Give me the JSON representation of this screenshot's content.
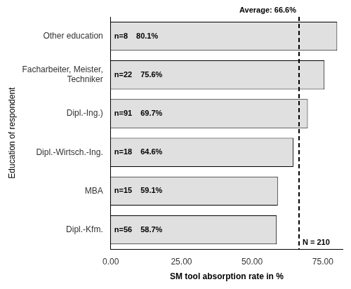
{
  "chart_data": {
    "type": "bar",
    "orientation": "horizontal",
    "categories": [
      "Dipl.-Kfm.",
      "MBA",
      "Dipl.-Wirtsch.-Ing.",
      "Dipl.-Ing.)",
      "Facharbeiter, Meister,\nTechniker",
      "Other education"
    ],
    "values": [
      58.7,
      59.1,
      64.6,
      69.7,
      75.6,
      80.1
    ],
    "value_labels": [
      "58.7%",
      "59.1%",
      "64.6%",
      "69.7%",
      "75.6%",
      "80.1%"
    ],
    "data_labels": true,
    "n_labels": [
      "n=56",
      "n=15",
      "n=18",
      "n=91",
      "n=22",
      "n=8"
    ],
    "color": "#e0e0e0",
    "xlabel": "SM tool absorption rate in %",
    "ylabel": "Education of respondent",
    "xlim": [
      0,
      82
    ],
    "xticks": [
      {
        "value": 0,
        "label": "0.00"
      },
      {
        "value": 25,
        "label": "25.00"
      },
      {
        "value": 50,
        "label": "50.00"
      },
      {
        "value": 75,
        "label": "75.00"
      }
    ],
    "grid": false,
    "lines": [
      {
        "x": 66.6,
        "label": "Average: 66.6%",
        "line_style": "dashed",
        "color": "#000000"
      }
    ],
    "annotations": [
      "N = 210"
    ]
  }
}
